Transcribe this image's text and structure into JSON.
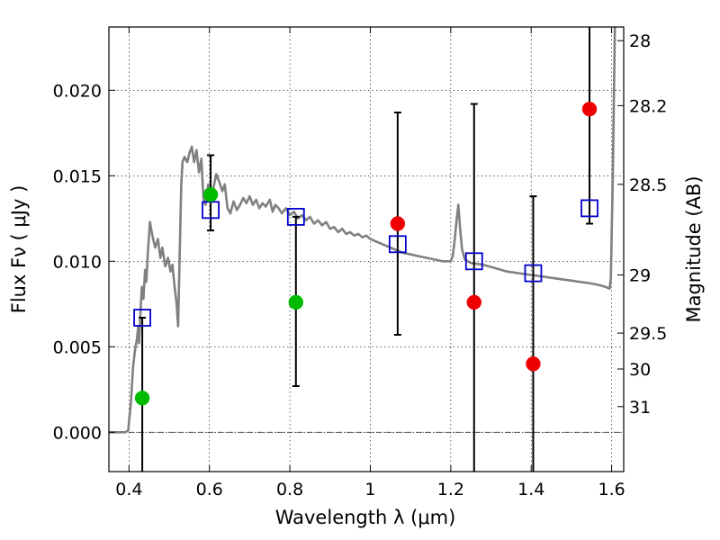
{
  "chart_data": {
    "type": "scatter",
    "xlabel": "Wavelength  λ (μm)",
    "ylabel": "Flux  Fν  ( μJy )",
    "y2label": "Magnitude (AB)",
    "xlim": [
      0.35,
      1.63
    ],
    "ylim": [
      -0.0023,
      0.0237
    ],
    "grid": true,
    "xticks": [
      0.4,
      0.6,
      0.8,
      1.0,
      1.2,
      1.4,
      1.6
    ],
    "xtick_labels": [
      "0.4",
      "0.6",
      "0.8",
      "1",
      "1.2",
      "1.4",
      "1.6"
    ],
    "yticks": [
      0.0,
      0.005,
      0.01,
      0.015,
      0.02
    ],
    "ytick_labels": [
      "0.000",
      "0.005",
      "0.010",
      "0.015",
      "0.020"
    ],
    "y2ticks": [
      {
        "label": "28",
        "flux": 0.0229
      },
      {
        "label": "28.2",
        "flux": 0.0191
      },
      {
        "label": "28.5",
        "flux": 0.0145
      },
      {
        "label": "29",
        "flux": 0.0092
      },
      {
        "label": "29.5",
        "flux": 0.0058
      },
      {
        "label": "30",
        "flux": 0.0037
      },
      {
        "label": "31",
        "flux": 0.0015
      }
    ],
    "model_spectrum": {
      "color": "#808080",
      "points": [
        [
          0.35,
          0.0
        ],
        [
          0.39,
          0.0
        ],
        [
          0.398,
          0.0001
        ],
        [
          0.4,
          0.0006
        ],
        [
          0.405,
          0.0018
        ],
        [
          0.41,
          0.0038
        ],
        [
          0.415,
          0.0048
        ],
        [
          0.42,
          0.0055
        ],
        [
          0.423,
          0.0062
        ],
        [
          0.425,
          0.0052
        ],
        [
          0.428,
          0.0068
        ],
        [
          0.432,
          0.0085
        ],
        [
          0.436,
          0.0078
        ],
        [
          0.44,
          0.0095
        ],
        [
          0.443,
          0.0088
        ],
        [
          0.447,
          0.0105
        ],
        [
          0.452,
          0.0123
        ],
        [
          0.458,
          0.0115
        ],
        [
          0.465,
          0.0108
        ],
        [
          0.472,
          0.0113
        ],
        [
          0.478,
          0.0102
        ],
        [
          0.483,
          0.0108
        ],
        [
          0.49,
          0.0097
        ],
        [
          0.497,
          0.0102
        ],
        [
          0.503,
          0.0094
        ],
        [
          0.508,
          0.0098
        ],
        [
          0.513,
          0.0086
        ],
        [
          0.518,
          0.0076
        ],
        [
          0.522,
          0.0062
        ],
        [
          0.526,
          0.0105
        ],
        [
          0.53,
          0.0145
        ],
        [
          0.533,
          0.0158
        ],
        [
          0.538,
          0.0161
        ],
        [
          0.545,
          0.0158
        ],
        [
          0.55,
          0.0163
        ],
        [
          0.556,
          0.0167
        ],
        [
          0.562,
          0.0158
        ],
        [
          0.568,
          0.0165
        ],
        [
          0.574,
          0.0152
        ],
        [
          0.58,
          0.016
        ],
        [
          0.585,
          0.0137
        ],
        [
          0.59,
          0.0133
        ],
        [
          0.597,
          0.0145
        ],
        [
          0.603,
          0.0138
        ],
        [
          0.61,
          0.0143
        ],
        [
          0.617,
          0.0151
        ],
        [
          0.625,
          0.0146
        ],
        [
          0.632,
          0.0141
        ],
        [
          0.638,
          0.0145
        ],
        [
          0.645,
          0.0131
        ],
        [
          0.652,
          0.0128
        ],
        [
          0.66,
          0.0135
        ],
        [
          0.668,
          0.013
        ],
        [
          0.676,
          0.0133
        ],
        [
          0.684,
          0.0137
        ],
        [
          0.692,
          0.0134
        ],
        [
          0.7,
          0.0138
        ],
        [
          0.708,
          0.0133
        ],
        [
          0.716,
          0.0136
        ],
        [
          0.724,
          0.0131
        ],
        [
          0.732,
          0.0134
        ],
        [
          0.74,
          0.0132
        ],
        [
          0.75,
          0.0136
        ],
        [
          0.757,
          0.0129
        ],
        [
          0.764,
          0.0133
        ],
        [
          0.772,
          0.0131
        ],
        [
          0.78,
          0.0128
        ],
        [
          0.79,
          0.0131
        ],
        [
          0.8,
          0.0127
        ],
        [
          0.81,
          0.0129
        ],
        [
          0.82,
          0.0125
        ],
        [
          0.83,
          0.0127
        ],
        [
          0.84,
          0.0124
        ],
        [
          0.85,
          0.0126
        ],
        [
          0.86,
          0.0122
        ],
        [
          0.87,
          0.0124
        ],
        [
          0.88,
          0.0121
        ],
        [
          0.89,
          0.0123
        ],
        [
          0.9,
          0.0119
        ],
        [
          0.91,
          0.012
        ],
        [
          0.92,
          0.0117
        ],
        [
          0.93,
          0.0119
        ],
        [
          0.94,
          0.0116
        ],
        [
          0.95,
          0.0117
        ],
        [
          0.96,
          0.0115
        ],
        [
          0.97,
          0.0116
        ],
        [
          0.98,
          0.0114
        ],
        [
          0.99,
          0.0115
        ],
        [
          1.0,
          0.0113
        ],
        [
          1.02,
          0.0111
        ],
        [
          1.04,
          0.0109
        ],
        [
          1.06,
          0.0107
        ],
        [
          1.08,
          0.0105
        ],
        [
          1.1,
          0.0104
        ],
        [
          1.12,
          0.0103
        ],
        [
          1.14,
          0.0102
        ],
        [
          1.16,
          0.0101
        ],
        [
          1.18,
          0.01
        ],
        [
          1.2,
          0.01
        ],
        [
          1.205,
          0.0103
        ],
        [
          1.21,
          0.0113
        ],
        [
          1.215,
          0.0125
        ],
        [
          1.219,
          0.0133
        ],
        [
          1.223,
          0.012
        ],
        [
          1.228,
          0.0107
        ],
        [
          1.235,
          0.0101
        ],
        [
          1.25,
          0.0099
        ],
        [
          1.28,
          0.0098
        ],
        [
          1.31,
          0.0096
        ],
        [
          1.34,
          0.0094
        ],
        [
          1.37,
          0.0093
        ],
        [
          1.4,
          0.0092
        ],
        [
          1.43,
          0.0091
        ],
        [
          1.46,
          0.009
        ],
        [
          1.49,
          0.0089
        ],
        [
          1.52,
          0.0088
        ],
        [
          1.55,
          0.0087
        ],
        [
          1.57,
          0.0086
        ],
        [
          1.585,
          0.0085
        ],
        [
          1.595,
          0.0084
        ],
        [
          1.598,
          0.009
        ],
        [
          1.603,
          0.015
        ],
        [
          1.608,
          0.0237
        ]
      ]
    },
    "series": [
      {
        "marker": "square",
        "color": "#0000cc",
        "points": [
          {
            "x": 0.433,
            "y": 0.0067
          },
          {
            "x": 0.603,
            "y": 0.013
          },
          {
            "x": 0.815,
            "y": 0.0126
          },
          {
            "x": 1.068,
            "y": 0.011
          },
          {
            "x": 1.258,
            "y": 0.01
          },
          {
            "x": 1.405,
            "y": 0.0093
          },
          {
            "x": 1.545,
            "y": 0.0131
          }
        ]
      },
      {
        "marker": "circle",
        "color": "#00bb00",
        "points": [
          {
            "x": 0.433,
            "y": 0.002
          },
          {
            "x": 0.603,
            "y": 0.0139
          },
          {
            "x": 0.815,
            "y": 0.0076
          }
        ]
      },
      {
        "marker": "circle",
        "color": "#ee0000",
        "points": [
          {
            "x": 1.068,
            "y": 0.0122
          },
          {
            "x": 1.258,
            "y": 0.0076
          },
          {
            "x": 1.405,
            "y": 0.004
          },
          {
            "x": 1.545,
            "y": 0.0189
          }
        ]
      }
    ],
    "error_bars": [
      {
        "x": 0.433,
        "low": -0.0023,
        "high": 0.0067
      },
      {
        "x": 0.603,
        "low": 0.0118,
        "high": 0.0162
      },
      {
        "x": 0.815,
        "low": 0.0027,
        "high": 0.0126
      },
      {
        "x": 1.068,
        "low": 0.0057,
        "high": 0.0187
      },
      {
        "x": 1.258,
        "low": -0.0023,
        "high": 0.0192
      },
      {
        "x": 1.405,
        "low": -0.0023,
        "high": 0.0138
      },
      {
        "x": 1.545,
        "low": 0.0122,
        "high": 0.0237
      }
    ],
    "zero_line": 0.0
  }
}
